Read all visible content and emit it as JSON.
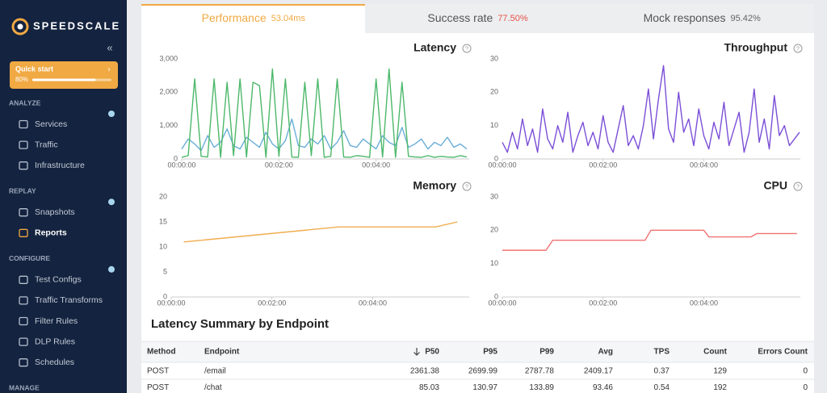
{
  "sidebar": {
    "logo": "SPEEDSCALE",
    "quick_start": {
      "title": "Quick start",
      "progress": {
        "value": 80,
        "label": "80%"
      }
    },
    "sections": [
      {
        "title": "ANALYZE",
        "items": [
          "Services",
          "Traffic",
          "Infrastructure"
        ]
      },
      {
        "title": "REPLAY",
        "items": [
          "Snapshots",
          "Reports"
        ]
      },
      {
        "title": "CONFIGURE",
        "items": [
          "Test Configs",
          "Traffic Transforms",
          "Filter Rules",
          "DLP Rules",
          "Schedules"
        ]
      },
      {
        "title": "MANAGE",
        "items": []
      }
    ]
  },
  "tabs": [
    {
      "name": "Performance",
      "value": "53.04ms"
    },
    {
      "name": "Success rate",
      "value": "77.50%"
    },
    {
      "name": "Mock responses",
      "value": "95.42%"
    }
  ],
  "chart_data": [
    {
      "type": "line",
      "title": "Latency",
      "xlim": [
        0,
        355
      ],
      "ylim": [
        0,
        3000
      ],
      "xticks": [
        {
          "value": 0,
          "label": "00:00:00"
        },
        {
          "value": 120,
          "label": "00:02:00"
        },
        {
          "value": 240,
          "label": "00:04:00"
        }
      ],
      "yticks": [
        0,
        {
          "value": 1000,
          "label": "1,000"
        },
        {
          "value": 2000,
          "label": "2,000"
        },
        {
          "value": 3000,
          "label": "3,000"
        }
      ],
      "x": [
        0,
        8,
        16,
        24,
        32,
        40,
        48,
        56,
        64,
        72,
        80,
        88,
        96,
        104,
        112,
        120,
        128,
        136,
        144,
        152,
        160,
        168,
        176,
        184,
        192,
        200,
        208,
        216,
        224,
        232,
        240,
        248,
        256,
        264,
        272,
        280,
        288,
        296,
        304,
        312,
        320,
        328,
        336,
        344,
        352
      ],
      "series": [
        {
          "color": "#6aaed6",
          "values": [
            300,
            600,
            450,
            250,
            700,
            350,
            500,
            900,
            400,
            300,
            650,
            500,
            350,
            800,
            450,
            300,
            550,
            1200,
            400,
            350,
            600,
            450,
            700,
            300,
            500,
            850,
            400,
            350,
            600,
            450,
            300,
            700,
            500,
            400,
            950,
            350,
            450,
            600,
            300,
            500,
            400,
            650,
            350,
            450,
            300
          ]
        },
        {
          "color": "#4cb86a",
          "values": [
            50,
            100,
            2400,
            80,
            60,
            2400,
            50,
            2300,
            100,
            2400,
            60,
            2300,
            2200,
            50,
            2700,
            80,
            2400,
            60,
            50,
            2300,
            100,
            2400,
            50,
            80,
            2400,
            60,
            50,
            100,
            80,
            50,
            2400,
            60,
            2700,
            50,
            2300,
            80,
            60,
            50,
            100,
            50,
            80,
            60,
            50,
            100,
            60
          ]
        }
      ]
    },
    {
      "type": "line",
      "title": "Throughput",
      "xlim": [
        0,
        355
      ],
      "ylim": [
        0,
        30
      ],
      "xticks": [
        {
          "value": 0,
          "label": "00:00:00"
        },
        {
          "value": 120,
          "label": "00:02:00"
        },
        {
          "value": 240,
          "label": "00:04:00"
        }
      ],
      "yticks": [
        0,
        10,
        20,
        30
      ],
      "x": [
        0,
        6,
        12,
        18,
        24,
        30,
        36,
        42,
        48,
        54,
        60,
        66,
        72,
        78,
        84,
        90,
        96,
        102,
        108,
        114,
        120,
        126,
        132,
        138,
        144,
        150,
        156,
        162,
        168,
        174,
        180,
        186,
        192,
        198,
        204,
        210,
        216,
        222,
        228,
        234,
        240,
        246,
        252,
        258,
        264,
        270,
        276,
        282,
        288,
        294,
        300,
        306,
        312,
        318,
        324,
        330,
        336,
        342,
        348,
        354
      ],
      "series": [
        {
          "color": "#7b4fd6",
          "values": [
            5,
            2,
            8,
            3,
            12,
            4,
            9,
            2,
            15,
            6,
            3,
            10,
            5,
            14,
            2,
            7,
            11,
            4,
            8,
            3,
            13,
            5,
            2,
            9,
            16,
            4,
            7,
            3,
            10,
            21,
            6,
            18,
            28,
            9,
            5,
            20,
            8,
            12,
            4,
            15,
            7,
            3,
            11,
            6,
            17,
            4,
            9,
            14,
            2,
            8,
            21,
            5,
            12,
            3,
            19,
            7,
            10,
            4,
            6,
            8
          ]
        }
      ]
    },
    {
      "type": "line",
      "title": "Memory",
      "xlim": [
        0,
        355
      ],
      "ylim": [
        0,
        20
      ],
      "xticks": [
        {
          "value": 0,
          "label": "00:00:00"
        },
        {
          "value": 120,
          "label": "00:02:00"
        },
        {
          "value": 240,
          "label": "00:04:00"
        }
      ],
      "yticks": [
        0,
        5,
        10,
        15,
        20
      ],
      "x": [
        15,
        200,
        315,
        341
      ],
      "series": [
        {
          "color": "#f0ad4e",
          "values": [
            11,
            14,
            14,
            15
          ]
        }
      ]
    },
    {
      "type": "line",
      "title": "CPU",
      "xlim": [
        0,
        355
      ],
      "ylim": [
        0,
        30
      ],
      "xticks": [
        {
          "value": 0,
          "label": "00:00:00"
        },
        {
          "value": 120,
          "label": "00:02:00"
        },
        {
          "value": 240,
          "label": "00:04:00"
        }
      ],
      "yticks": [
        0,
        10,
        20,
        30
      ],
      "x": [
        0,
        52,
        60,
        170,
        177,
        240,
        246,
        296,
        303,
        351
      ],
      "series": [
        {
          "color": "#f07272",
          "values": [
            14,
            14,
            17,
            17,
            20,
            20,
            18,
            18,
            19,
            19
          ]
        }
      ]
    }
  ],
  "table": {
    "title": "Latency Summary by Endpoint",
    "columns": [
      "Method",
      "Endpoint",
      "P50",
      "P95",
      "P99",
      "Avg",
      "TPS",
      "Count",
      "Errors Count"
    ],
    "rows": [
      [
        "POST",
        "/email",
        2361.38,
        2699.99,
        2787.78,
        2409.17,
        0.37,
        129,
        0
      ],
      [
        "POST",
        "/chat",
        85.03,
        130.97,
        133.89,
        93.46,
        0.54,
        192,
        0
      ]
    ]
  }
}
